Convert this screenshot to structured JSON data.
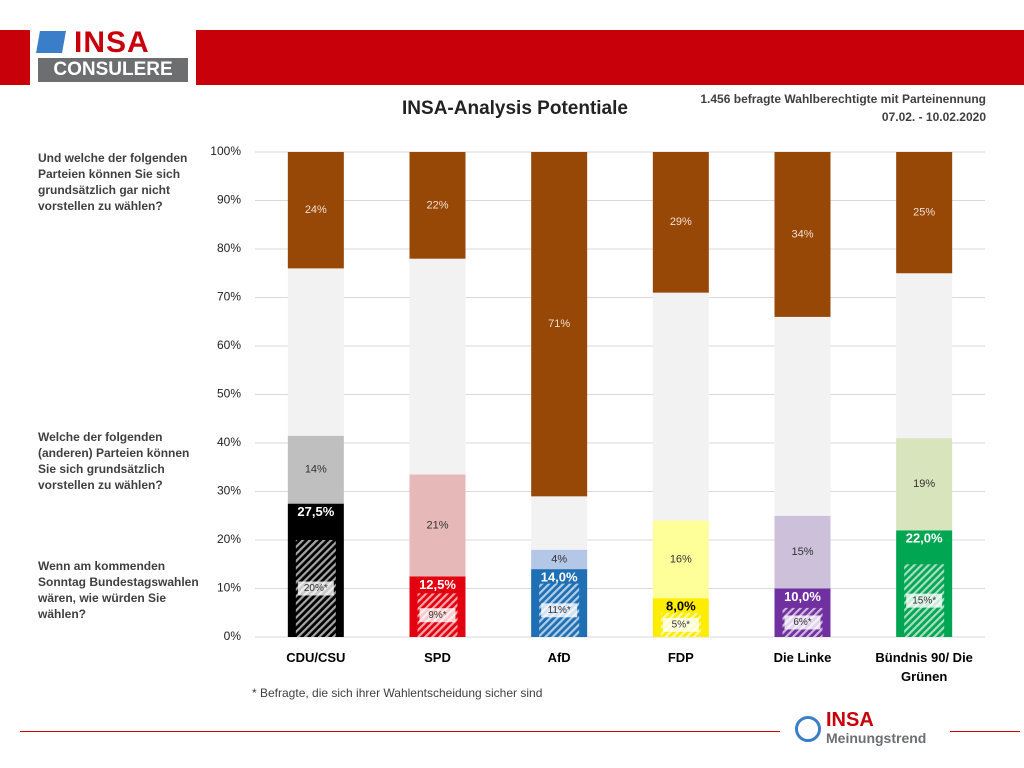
{
  "header": {
    "logo_top": "INSA",
    "logo_bottom": "CONSULERE"
  },
  "footer": {
    "logo_top": "INSA",
    "logo_bottom": "Meinungstrend"
  },
  "chart_data": {
    "type": "stacked-bar",
    "title": "INSA-Analysis Potentiale",
    "subtitle": "1.456 befragte Wahlberechtigte mit Parteinennung",
    "date": "07.02. - 10.02.2020",
    "footnote": "* Befragte, die sich ihrer Wahlentscheidung sicher sind",
    "categories": [
      "CDU/CSU",
      "SPD",
      "AfD",
      "FDP",
      "Die Linke",
      "Bündnis 90/ Die Grünen"
    ],
    "ylim": [
      0,
      100
    ],
    "yticks": [
      {
        "value": 0,
        "label": "0%"
      },
      {
        "value": 10,
        "label": "10%"
      },
      {
        "value": 20,
        "label": "20%"
      },
      {
        "value": 30,
        "label": "30%"
      },
      {
        "value": 40,
        "label": "40%"
      },
      {
        "value": 50,
        "label": "50%"
      },
      {
        "value": 60,
        "label": "60%"
      },
      {
        "value": 70,
        "label": "70%"
      },
      {
        "value": 80,
        "label": "80%"
      },
      {
        "value": 90,
        "label": "90%"
      },
      {
        "value": 100,
        "label": "100%"
      }
    ],
    "grid": true,
    "series": [
      {
        "name": "Wenn am kommenden Sonntag Bundestagswahlen wären, wie würden Sie wählen?",
        "colors": [
          "#000000",
          "#e3000f",
          "#1f6fb5",
          "#ffed00",
          "#7030a0",
          "#00a651"
        ],
        "label_colors": [
          "#ffffff",
          "#ffffff",
          "#ffffff",
          "#000000",
          "#ffffff",
          "#ffffff"
        ],
        "values": [
          27.5,
          12.5,
          14,
          8,
          10,
          22
        ],
        "value_labels": [
          "27,5%",
          "12,5%",
          "14,0%",
          "8,0%",
          "10,0%",
          "22,0%"
        ]
      },
      {
        "name": "Welche der folgenden (anderen) Parteien können Sie sich grundsätzlich vorstellen zu wählen?",
        "colors": [
          "#bfbfbf",
          "#e6b8b7",
          "#b4c7e7",
          "#ffff99",
          "#ccc0da",
          "#d8e4bc"
        ],
        "values": [
          14,
          21,
          4,
          16,
          15,
          19
        ],
        "value_labels": [
          "14%",
          "21%",
          "4%",
          "16%",
          "15%",
          "19%"
        ]
      },
      {
        "color": "#f2f2f2",
        "values": [
          34.5,
          44.5,
          11,
          47,
          41,
          34
        ]
      },
      {
        "name": "Und welche der folgenden Parteien können Sie sich grundsätzlich gar nicht vorstellen zu wählen?",
        "color": "#974706",
        "values": [
          24,
          22,
          71,
          29,
          34,
          25
        ],
        "value_labels": [
          "24%",
          "22%",
          "71%",
          "29%",
          "34%",
          "25%"
        ]
      }
    ],
    "overlay": {
      "values": [
        20,
        9,
        11,
        5,
        6,
        15
      ],
      "value_labels": [
        "20%*",
        "9%*",
        "11%*",
        "5%*",
        "6%*",
        "15%*"
      ]
    }
  }
}
